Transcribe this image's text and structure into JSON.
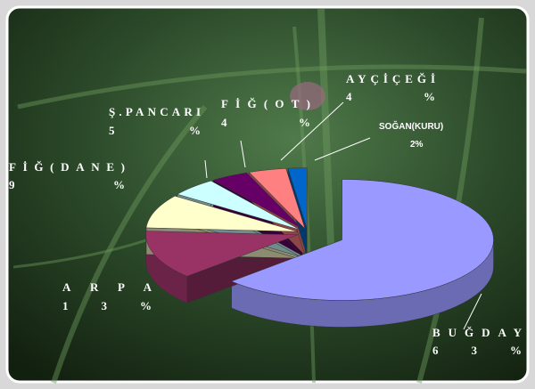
{
  "chart_data": {
    "type": "pie",
    "categories": [
      "BUĞDAY",
      "ARPA",
      "FİĞ(DANE)",
      "Ş.PANCARI",
      "FİĞ(OT)",
      "AYÇİÇEĞİ",
      "SOĞAN(KURU)"
    ],
    "values": [
      63,
      13,
      9,
      5,
      4,
      4,
      2
    ],
    "value_labels": [
      "63%",
      "13%",
      "9%",
      "5%",
      "4%",
      "4%",
      "2%"
    ],
    "colors": [
      "#9999ff",
      "#993366",
      "#ffffcc",
      "#ccffff",
      "#660066",
      "#ff8080",
      "#0066cc"
    ]
  }
}
